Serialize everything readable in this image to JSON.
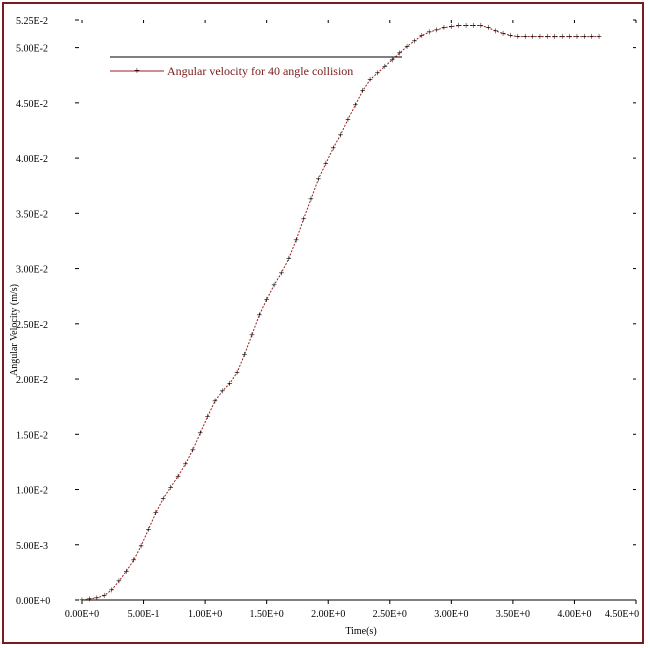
{
  "chart_data": {
    "type": "line",
    "title": "",
    "xlabel": "Time(s)",
    "ylabel": "Angular Velocity (m/s)",
    "xlim": [
      0,
      4.5
    ],
    "ylim": [
      0,
      0.0525
    ],
    "grid": false,
    "legend_position": "top-left",
    "x_tick_labels": [
      "0.00E+0",
      "5.00E-1",
      "1.00E+0",
      "1.50E+0",
      "2.00E+0",
      "2.50E+0",
      "3.00E+0",
      "3.50E+0",
      "4.00E+0",
      "4.50E+0"
    ],
    "x_tick_values": [
      0,
      0.5,
      1.0,
      1.5,
      2.0,
      2.5,
      3.0,
      3.5,
      4.0,
      4.5
    ],
    "y_tick_labels": [
      "0.00E+0",
      "5.00E-3",
      "1.00E-2",
      "1.50E-2",
      "2.00E-2",
      "2.50E-2",
      "3.00E-2",
      "3.50E-2",
      "4.00E-2",
      "4.50E-2",
      "5.00E-2",
      "5.25E-2"
    ],
    "y_tick_values": [
      0,
      0.005,
      0.01,
      0.015,
      0.02,
      0.025,
      0.03,
      0.035,
      0.04,
      0.045,
      0.05,
      0.0525
    ],
    "colors": {
      "series": "#a01c1c",
      "frame": "#7a1a1a",
      "axis": "#000000"
    },
    "series": [
      {
        "name": "Angular velocity for 40 angle collision",
        "x": [
          0.0,
          0.06,
          0.12,
          0.18,
          0.24,
          0.3,
          0.36,
          0.42,
          0.48,
          0.54,
          0.6,
          0.66,
          0.72,
          0.78,
          0.84,
          0.9,
          0.96,
          1.02,
          1.08,
          1.14,
          1.2,
          1.26,
          1.32,
          1.38,
          1.44,
          1.5,
          1.56,
          1.62,
          1.68,
          1.74,
          1.8,
          1.86,
          1.92,
          1.98,
          2.04,
          2.1,
          2.16,
          2.22,
          2.28,
          2.34,
          2.4,
          2.46,
          2.52,
          2.58,
          2.64,
          2.7,
          2.76,
          2.82,
          2.88,
          2.94,
          3.0,
          3.06,
          3.12,
          3.18,
          3.24,
          3.3,
          3.36,
          3.42,
          3.48,
          3.54,
          3.6,
          3.66,
          3.72,
          3.78,
          3.84,
          3.9,
          3.96,
          4.02,
          4.08,
          4.14,
          4.2
        ],
        "y": [
          0.0,
          0.0001,
          0.0002,
          0.0004,
          0.0009,
          0.0017,
          0.0026,
          0.0036,
          0.0049,
          0.0064,
          0.0079,
          0.0092,
          0.0102,
          0.0112,
          0.0123,
          0.0136,
          0.0151,
          0.0166,
          0.018,
          0.0189,
          0.0196,
          0.0206,
          0.0222,
          0.024,
          0.0258,
          0.0272,
          0.0285,
          0.0296,
          0.0309,
          0.0326,
          0.0345,
          0.0363,
          0.0381,
          0.0395,
          0.0409,
          0.0421,
          0.0435,
          0.0448,
          0.0461,
          0.0471,
          0.0477,
          0.0483,
          0.0489,
          0.0495,
          0.0501,
          0.0506,
          0.0511,
          0.0514,
          0.0516,
          0.0518,
          0.0519,
          0.052,
          0.052,
          0.052,
          0.052,
          0.0518,
          0.0515,
          0.0513,
          0.0511,
          0.051,
          0.051,
          0.051,
          0.051,
          0.051,
          0.051,
          0.051,
          0.051,
          0.051,
          0.051,
          0.051,
          0.051
        ]
      }
    ]
  }
}
